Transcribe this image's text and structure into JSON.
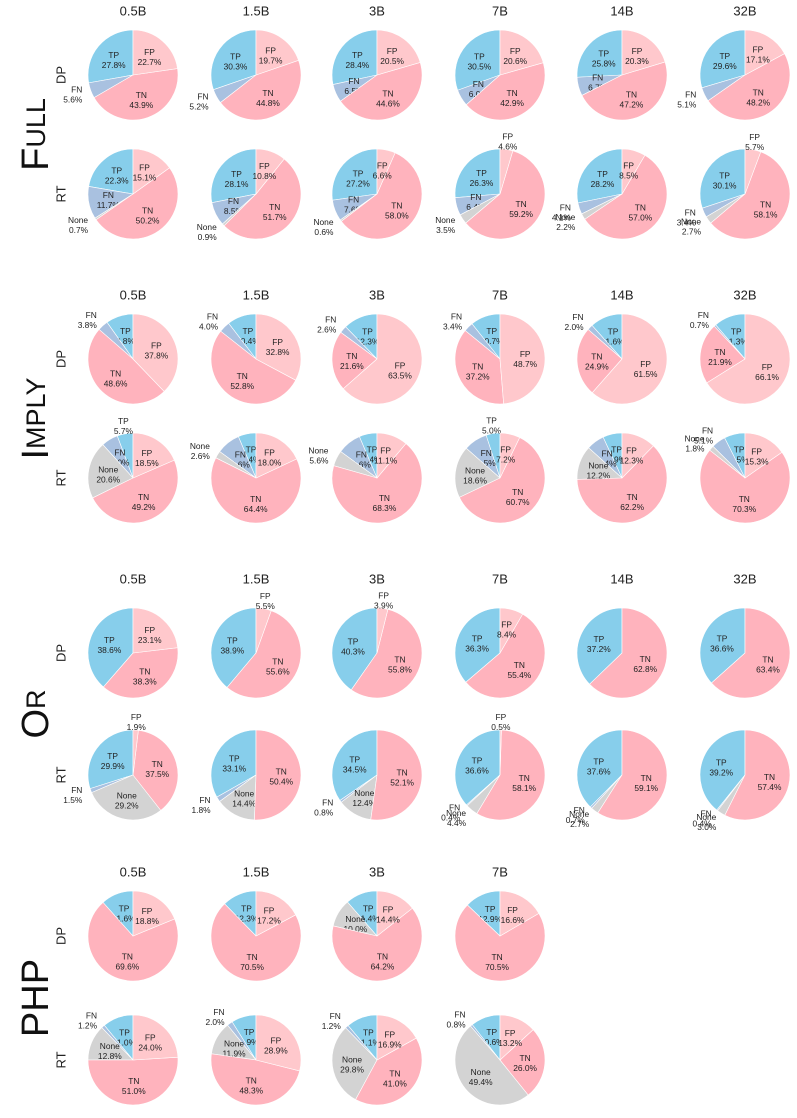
{
  "colors": {
    "TP": "#87ceeb",
    "FP": "#ffc8cc",
    "TN": "#ffb3bd",
    "FN": "#a9c1e0",
    "None": "#d3d3d3"
  },
  "slice_order": [
    "TP",
    "FP",
    "TN",
    "None",
    "FN"
  ],
  "chart_data": [
    {
      "type": "pie",
      "group": "Full",
      "model_sizes": [
        "0.5B",
        "1.5B",
        "3B",
        "7B",
        "14B",
        "32B"
      ],
      "rows": [
        {
          "method": "DP",
          "pies": [
            {
              "TP": 27.8,
              "FP": 22.7,
              "TN": 43.9,
              "FN": 5.6
            },
            {
              "TP": 30.3,
              "FP": 19.7,
              "TN": 44.8,
              "FN": 5.2
            },
            {
              "TP": 28.4,
              "FP": 20.5,
              "TN": 44.6,
              "FN": 6.5
            },
            {
              "TP": 30.5,
              "FP": 20.6,
              "TN": 42.9,
              "FN": 6.0
            },
            {
              "TP": 25.8,
              "FP": 20.3,
              "TN": 47.2,
              "FN": 6.7
            },
            {
              "TP": 29.6,
              "FP": 17.1,
              "TN": 48.2,
              "FN": 5.1
            }
          ]
        },
        {
          "method": "RT",
          "pies": [
            {
              "TP": 22.3,
              "FP": 15.1,
              "TN": 50.2,
              "None": 0.7,
              "FN": 11.7
            },
            {
              "TP": 28.1,
              "FP": 10.8,
              "TN": 51.7,
              "None": 0.9,
              "FN": 8.5
            },
            {
              "TP": 27.2,
              "FP": 6.6,
              "TN": 58.0,
              "None": 0.6,
              "FN": 7.6
            },
            {
              "TP": 26.3,
              "FP": 4.6,
              "TN": 59.2,
              "None": 3.5,
              "FN": 6.4
            },
            {
              "TP": 28.2,
              "FP": 8.5,
              "TN": 57.0,
              "None": 2.2,
              "FN": 4.1
            },
            {
              "TP": 30.1,
              "FP": 5.7,
              "TN": 58.1,
              "None": 2.7,
              "FN": 3.4
            }
          ]
        }
      ]
    },
    {
      "type": "pie",
      "group": "Imply",
      "model_sizes": [
        "0.5B",
        "1.5B",
        "3B",
        "7B",
        "14B",
        "32B"
      ],
      "rows": [
        {
          "method": "DP",
          "pies": [
            {
              "TP": 9.8,
              "FP": 37.8,
              "TN": 48.6,
              "FN": 3.8
            },
            {
              "TP": 10.4,
              "FP": 32.8,
              "TN": 52.8,
              "FN": 4.0
            },
            {
              "TP": 12.3,
              "FP": 63.5,
              "TN": 21.6,
              "FN": 2.6
            },
            {
              "TP": 10.7,
              "FP": 48.7,
              "TN": 37.2,
              "FN": 3.4
            },
            {
              "TP": 11.6,
              "FP": 61.5,
              "TN": 24.9,
              "FN": 2.0
            },
            {
              "TP": 11.3,
              "FP": 66.1,
              "TN": 21.9,
              "FN": 0.7
            }
          ]
        },
        {
          "method": "RT",
          "pies": [
            {
              "TP": 5.7,
              "FP": 18.5,
              "TN": 49.2,
              "None": 20.6,
              "FN": 6.0
            },
            {
              "TP": 6.4,
              "FP": 18.0,
              "TN": 64.4,
              "None": 2.6,
              "FN": 8.6
            },
            {
              "TP": 6.4,
              "FP": 11.1,
              "TN": 68.3,
              "None": 5.6,
              "FN": 8.6
            },
            {
              "TP": 5.0,
              "FP": 7.2,
              "TN": 60.7,
              "None": 18.6,
              "FN": 8.5
            },
            {
              "TP": 6.9,
              "FP": 12.3,
              "TN": 62.2,
              "None": 12.2,
              "FN": 6.4
            },
            {
              "TP": 7.5,
              "FP": 15.3,
              "TN": 70.3,
              "None": 1.8,
              "FN": 5.1
            }
          ]
        }
      ]
    },
    {
      "type": "pie",
      "group": "Or",
      "model_sizes": [
        "0.5B",
        "1.5B",
        "3B",
        "7B",
        "14B",
        "32B"
      ],
      "rows": [
        {
          "method": "DP",
          "pies": [
            {
              "TP": 38.6,
              "FP": 23.1,
              "TN": 38.3
            },
            {
              "TP": 38.9,
              "FP": 5.5,
              "TN": 55.6
            },
            {
              "TP": 40.3,
              "FP": 3.9,
              "TN": 55.8
            },
            {
              "TP": 36.3,
              "FP": 8.4,
              "TN": 55.4
            },
            {
              "TP": 37.2,
              "TN": 62.8
            },
            {
              "TP": 36.6,
              "TN": 63.4
            }
          ]
        },
        {
          "method": "RT",
          "pies": [
            {
              "TP": 29.9,
              "FP": 1.9,
              "TN": 37.5,
              "None": 29.2,
              "FN": 1.5
            },
            {
              "TP": 33.1,
              "TN": 50.4,
              "None": 14.4,
              "FN": 1.8
            },
            {
              "TP": 34.5,
              "TN": 52.1,
              "None": 12.4,
              "FN": 0.8
            },
            {
              "TP": 36.6,
              "FP": 0.5,
              "TN": 58.1,
              "None": 4.4,
              "FN": 0.4
            },
            {
              "TP": 37.6,
              "TN": 59.1,
              "None": 2.7,
              "FN": 0.7
            },
            {
              "TP": 39.2,
              "TN": 57.4,
              "None": 3.0,
              "FN": 0.4
            }
          ]
        }
      ]
    },
    {
      "type": "pie",
      "group": "PHP",
      "model_sizes": [
        "0.5B",
        "1.5B",
        "3B",
        "7B"
      ],
      "rows": [
        {
          "method": "DP",
          "pies": [
            {
              "TP": 11.6,
              "FP": 18.8,
              "TN": 69.6
            },
            {
              "TP": 12.3,
              "FP": 17.2,
              "TN": 70.5
            },
            {
              "TP": 11.4,
              "FP": 14.4,
              "TN": 64.2,
              "None": 10.0
            },
            {
              "TP": 12.9,
              "FP": 16.6,
              "TN": 70.5
            }
          ]
        },
        {
          "method": "RT",
          "pies": [
            {
              "TP": 11.0,
              "FP": 24.0,
              "TN": 51.0,
              "None": 12.8,
              "FN": 1.2
            },
            {
              "TP": 8.9,
              "FP": 28.9,
              "TN": 48.3,
              "None": 11.9,
              "FN": 2.0
            },
            {
              "TP": 11.1,
              "FP": 16.9,
              "TN": 41.0,
              "None": 29.8,
              "FN": 1.2
            },
            {
              "TP": 10.6,
              "FP": 13.2,
              "TN": 26.0,
              "None": 49.4,
              "FN": 0.8
            }
          ]
        }
      ]
    }
  ]
}
